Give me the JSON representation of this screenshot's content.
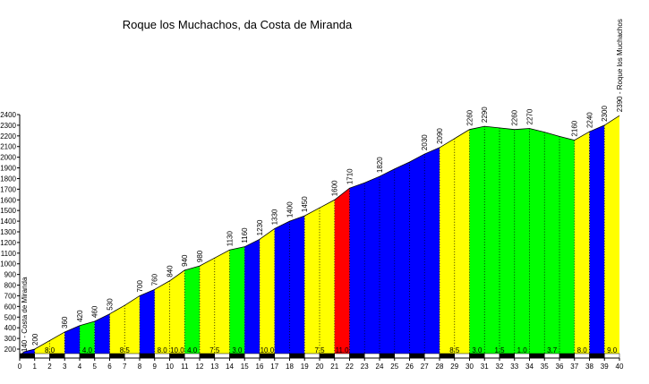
{
  "chart_data": {
    "type": "area",
    "title": "Roque los Muchachos, da Costa de Miranda",
    "xlabel": "",
    "ylabel": "",
    "xlim": [
      0,
      40
    ],
    "ylim": [
      200,
      2400
    ],
    "x_ticks": [
      0,
      1,
      2,
      3,
      4,
      5,
      6,
      7,
      8,
      9,
      10,
      11,
      12,
      13,
      14,
      15,
      16,
      17,
      18,
      19,
      20,
      21,
      22,
      23,
      24,
      25,
      26,
      27,
      28,
      29,
      30,
      31,
      32,
      33,
      34,
      35,
      36,
      37,
      38,
      39,
      40
    ],
    "y_ticks": [
      200,
      300,
      400,
      500,
      600,
      700,
      800,
      900,
      1000,
      1100,
      1200,
      1300,
      1400,
      1500,
      1600,
      1700,
      1800,
      1900,
      2000,
      2100,
      2200,
      2300,
      2400
    ],
    "profile": [
      [
        0,
        140
      ],
      [
        0.3,
        175
      ],
      [
        1,
        200
      ],
      [
        2.5,
        320
      ],
      [
        3,
        360
      ],
      [
        4,
        420
      ],
      [
        5,
        460
      ],
      [
        6,
        530
      ],
      [
        7,
        610
      ],
      [
        8,
        700
      ],
      [
        9,
        760
      ],
      [
        10,
        840
      ],
      [
        11,
        940
      ],
      [
        12,
        980
      ],
      [
        13,
        1055
      ],
      [
        14,
        1130
      ],
      [
        15,
        1160
      ],
      [
        16,
        1230
      ],
      [
        17,
        1330
      ],
      [
        18,
        1400
      ],
      [
        19,
        1450
      ],
      [
        20,
        1525
      ],
      [
        21,
        1600
      ],
      [
        22,
        1710
      ],
      [
        23,
        1760
      ],
      [
        24,
        1820
      ],
      [
        25,
        1890
      ],
      [
        26,
        1955
      ],
      [
        27,
        2030
      ],
      [
        28,
        2090
      ],
      [
        29,
        2175
      ],
      [
        30,
        2260
      ],
      [
        31,
        2290
      ],
      [
        32,
        2275
      ],
      [
        33,
        2260
      ],
      [
        34,
        2270
      ],
      [
        35,
        2235
      ],
      [
        36,
        2195
      ],
      [
        37,
        2160
      ],
      [
        38,
        2240
      ],
      [
        39,
        2300
      ],
      [
        40,
        2390
      ]
    ],
    "segments": [
      {
        "from": 0,
        "to": 1,
        "color": "#0000ff",
        "gradient": ""
      },
      {
        "from": 1,
        "to": 3,
        "color": "#ffff00",
        "gradient": "8.0"
      },
      {
        "from": 3,
        "to": 4,
        "color": "#0000ff",
        "gradient": ""
      },
      {
        "from": 4,
        "to": 5,
        "color": "#00ff00",
        "gradient": "4.0"
      },
      {
        "from": 5,
        "to": 6,
        "color": "#0000ff",
        "gradient": ""
      },
      {
        "from": 6,
        "to": 8,
        "color": "#ffff00",
        "gradient": "8.5"
      },
      {
        "from": 8,
        "to": 9,
        "color": "#0000ff",
        "gradient": ""
      },
      {
        "from": 9,
        "to": 10,
        "color": "#ffff00",
        "gradient": "8.0"
      },
      {
        "from": 10,
        "to": 11,
        "color": "#ffff00",
        "gradient": "10.0"
      },
      {
        "from": 11,
        "to": 12,
        "color": "#00ff00",
        "gradient": "4.0"
      },
      {
        "from": 12,
        "to": 14,
        "color": "#ffff00",
        "gradient": "7.5"
      },
      {
        "from": 14,
        "to": 15,
        "color": "#00ff00",
        "gradient": "3.0"
      },
      {
        "from": 15,
        "to": 16,
        "color": "#0000ff",
        "gradient": ""
      },
      {
        "from": 16,
        "to": 17,
        "color": "#ffff00",
        "gradient": "10.0"
      },
      {
        "from": 17,
        "to": 19,
        "color": "#0000ff",
        "gradient": ""
      },
      {
        "from": 19,
        "to": 21,
        "color": "#ffff00",
        "gradient": "7.5"
      },
      {
        "from": 21,
        "to": 22,
        "color": "#ff0000",
        "gradient": "11.0"
      },
      {
        "from": 22,
        "to": 28,
        "color": "#0000ff",
        "gradient": ""
      },
      {
        "from": 28,
        "to": 30,
        "color": "#ffff00",
        "gradient": "8.5"
      },
      {
        "from": 30,
        "to": 37,
        "color": "#00ff00",
        "gradient": ""
      },
      {
        "from": 37,
        "to": 38,
        "color": "#ffff00",
        "gradient": "8.0"
      },
      {
        "from": 38,
        "to": 39,
        "color": "#0000ff",
        "gradient": ""
      },
      {
        "from": 39,
        "to": 40,
        "color": "#ffff00",
        "gradient": "9.0"
      }
    ],
    "bar_labels": [
      {
        "x": 2,
        "text": "8.0"
      },
      {
        "x": 4.5,
        "text": "4.0"
      },
      {
        "x": 7,
        "text": "8.5"
      },
      {
        "x": 9.5,
        "text": "8.0"
      },
      {
        "x": 10.5,
        "text": "10.0"
      },
      {
        "x": 11.5,
        "text": "4.0"
      },
      {
        "x": 13,
        "text": "7.5"
      },
      {
        "x": 14.5,
        "text": "3.0"
      },
      {
        "x": 16.5,
        "text": "10.0"
      },
      {
        "x": 20,
        "text": "7.5"
      },
      {
        "x": 21.5,
        "text": "11.0"
      },
      {
        "x": 29,
        "text": "8.5"
      },
      {
        "x": 30.5,
        "text": "3.0"
      },
      {
        "x": 32,
        "text": "1.5"
      },
      {
        "x": 33.5,
        "text": "1.0"
      },
      {
        "x": 35.5,
        "text": "3.7"
      },
      {
        "x": 37.5,
        "text": "8.0"
      },
      {
        "x": 39.5,
        "text": "9.0"
      }
    ],
    "altitude_labels": [
      {
        "x": 1,
        "y": 200,
        "text": "200"
      },
      {
        "x": 3,
        "y": 360,
        "text": "360"
      },
      {
        "x": 4,
        "y": 420,
        "text": "420"
      },
      {
        "x": 5,
        "y": 460,
        "text": "460"
      },
      {
        "x": 6,
        "y": 530,
        "text": "530"
      },
      {
        "x": 8,
        "y": 700,
        "text": "700"
      },
      {
        "x": 9,
        "y": 760,
        "text": "760"
      },
      {
        "x": 10,
        "y": 840,
        "text": "840"
      },
      {
        "x": 11,
        "y": 940,
        "text": "940"
      },
      {
        "x": 12,
        "y": 980,
        "text": "980"
      },
      {
        "x": 14,
        "y": 1130,
        "text": "1130"
      },
      {
        "x": 15,
        "y": 1160,
        "text": "1160"
      },
      {
        "x": 16,
        "y": 1230,
        "text": "1230"
      },
      {
        "x": 17,
        "y": 1330,
        "text": "1330"
      },
      {
        "x": 18,
        "y": 1400,
        "text": "1400"
      },
      {
        "x": 19,
        "y": 1450,
        "text": "1450"
      },
      {
        "x": 21,
        "y": 1600,
        "text": "1600"
      },
      {
        "x": 22,
        "y": 1710,
        "text": "1710"
      },
      {
        "x": 24,
        "y": 1820,
        "text": "1820"
      },
      {
        "x": 27,
        "y": 2030,
        "text": "2030"
      },
      {
        "x": 28,
        "y": 2090,
        "text": "2090"
      },
      {
        "x": 30,
        "y": 2260,
        "text": "2260"
      },
      {
        "x": 31,
        "y": 2290,
        "text": "2290"
      },
      {
        "x": 33,
        "y": 2260,
        "text": "2260"
      },
      {
        "x": 34,
        "y": 2270,
        "text": "2270"
      },
      {
        "x": 37,
        "y": 2160,
        "text": "2160"
      },
      {
        "x": 38,
        "y": 2240,
        "text": "2240"
      },
      {
        "x": 39,
        "y": 2300,
        "text": "2300"
      }
    ],
    "start_label": "140 - Costa de Miranda",
    "end_label": "2390 - Roque los Muchachos",
    "grid": false
  }
}
